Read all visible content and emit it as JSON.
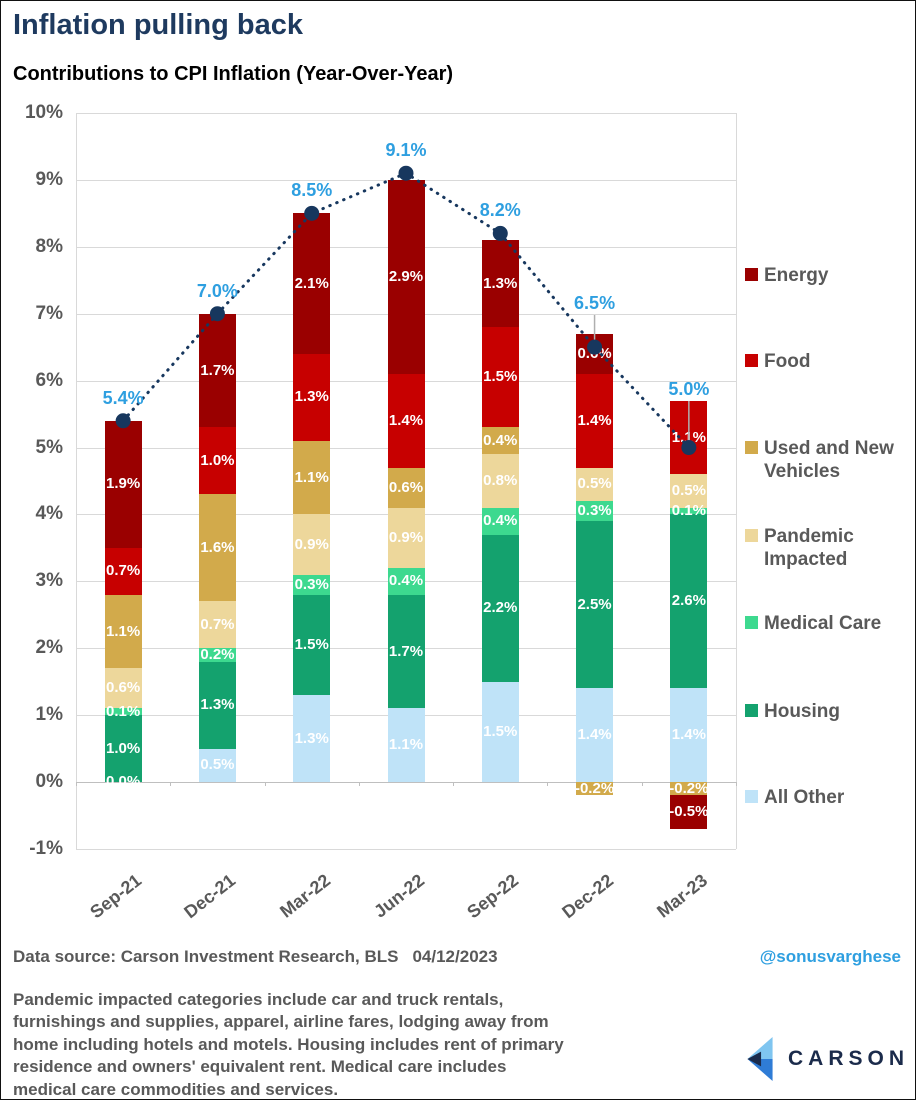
{
  "page": {
    "title": "Inflation pulling back",
    "subtitle": "Contributions to CPI Inflation (Year-Over-Year)"
  },
  "chart_data": {
    "type": "bar",
    "subtype": "stacked-bar-with-line",
    "title": "Contributions to CPI Inflation (Year-Over-Year)",
    "categories": [
      "Sep-21",
      "Dec-21",
      "Mar-22",
      "Jun-22",
      "Sep-22",
      "Dec-22",
      "Mar-23"
    ],
    "series": [
      {
        "name": "All Other",
        "color": "#BFE3F8",
        "values": [
          0.0,
          0.5,
          1.3,
          1.1,
          1.5,
          1.4,
          1.4
        ]
      },
      {
        "name": "Housing",
        "color": "#14A26E",
        "values": [
          1.0,
          1.3,
          1.5,
          1.7,
          2.2,
          2.5,
          2.6
        ]
      },
      {
        "name": "Medical Care",
        "color": "#3DD98F",
        "values": [
          0.1,
          0.2,
          0.3,
          0.4,
          0.4,
          0.3,
          0.1
        ]
      },
      {
        "name": "Pandemic Impacted",
        "color": "#EDD79B",
        "values": [
          0.6,
          0.7,
          0.9,
          0.9,
          0.8,
          0.5,
          0.5
        ]
      },
      {
        "name": "Used and New Vehicles",
        "color": "#D2AA4B",
        "values": [
          1.1,
          1.6,
          1.1,
          0.6,
          0.4,
          -0.2,
          -0.2
        ]
      },
      {
        "name": "Food",
        "color": "#C70000",
        "values": [
          0.7,
          1.0,
          1.3,
          1.4,
          1.5,
          1.4,
          1.1
        ]
      },
      {
        "name": "Energy",
        "color": "#9A0000",
        "values": [
          1.9,
          1.7,
          2.1,
          2.9,
          1.3,
          0.6,
          -0.5
        ]
      }
    ],
    "line": {
      "name": "Total CPI YoY",
      "values": [
        5.4,
        7.0,
        8.5,
        9.1,
        8.2,
        6.5,
        5.0
      ],
      "labels": [
        "5.4%",
        "7.0%",
        "8.5%",
        "9.1%",
        "8.2%",
        "6.5%",
        "5.0%"
      ],
      "color": "#17375E",
      "label_color": "#2E9FE0",
      "style": "dotted"
    },
    "legend": [
      {
        "label": "Energy",
        "color": "#9A0000"
      },
      {
        "label": "Food",
        "color": "#C70000"
      },
      {
        "label": "Used and New Vehicles",
        "color": "#D2AA4B"
      },
      {
        "label": "Pandemic Impacted",
        "color": "#EDD79B"
      },
      {
        "label": "Medical Care",
        "color": "#3DD98F"
      },
      {
        "label": "Housing",
        "color": "#14A26E"
      },
      {
        "label": "All Other",
        "color": "#BFE3F8"
      }
    ],
    "legend_position": "right",
    "ylim": [
      -1,
      10
    ],
    "y_ticks": [
      "10%",
      "9%",
      "8%",
      "7%",
      "6%",
      "5%",
      "4%",
      "3%",
      "2%",
      "1%",
      "0%",
      "-1%"
    ],
    "grid": true
  },
  "footer": {
    "source": "Data source: Carson Investment Research, BLS",
    "date": "04/12/2023",
    "handle": "@sonusvarghese",
    "note": "Pandemic impacted categories include car and truck rentals, furnishings and supplies, apparel, airline fares, lodging away from home including hotels and motels. Housing includes rent of primary residence and owners' equivalent rent. Medical care includes medical care commodities and services.",
    "logo_text": "CARSON"
  },
  "colors": {
    "title": "#1E3A5F",
    "axis_text": "#595959",
    "gridline": "#D9D9D9",
    "line": "#17375E",
    "line_label": "#2E9FE0",
    "logo_light_blue": "#7FC5F0",
    "logo_blue": "#2F7CD6",
    "logo_navy": "#1B2B4B"
  }
}
